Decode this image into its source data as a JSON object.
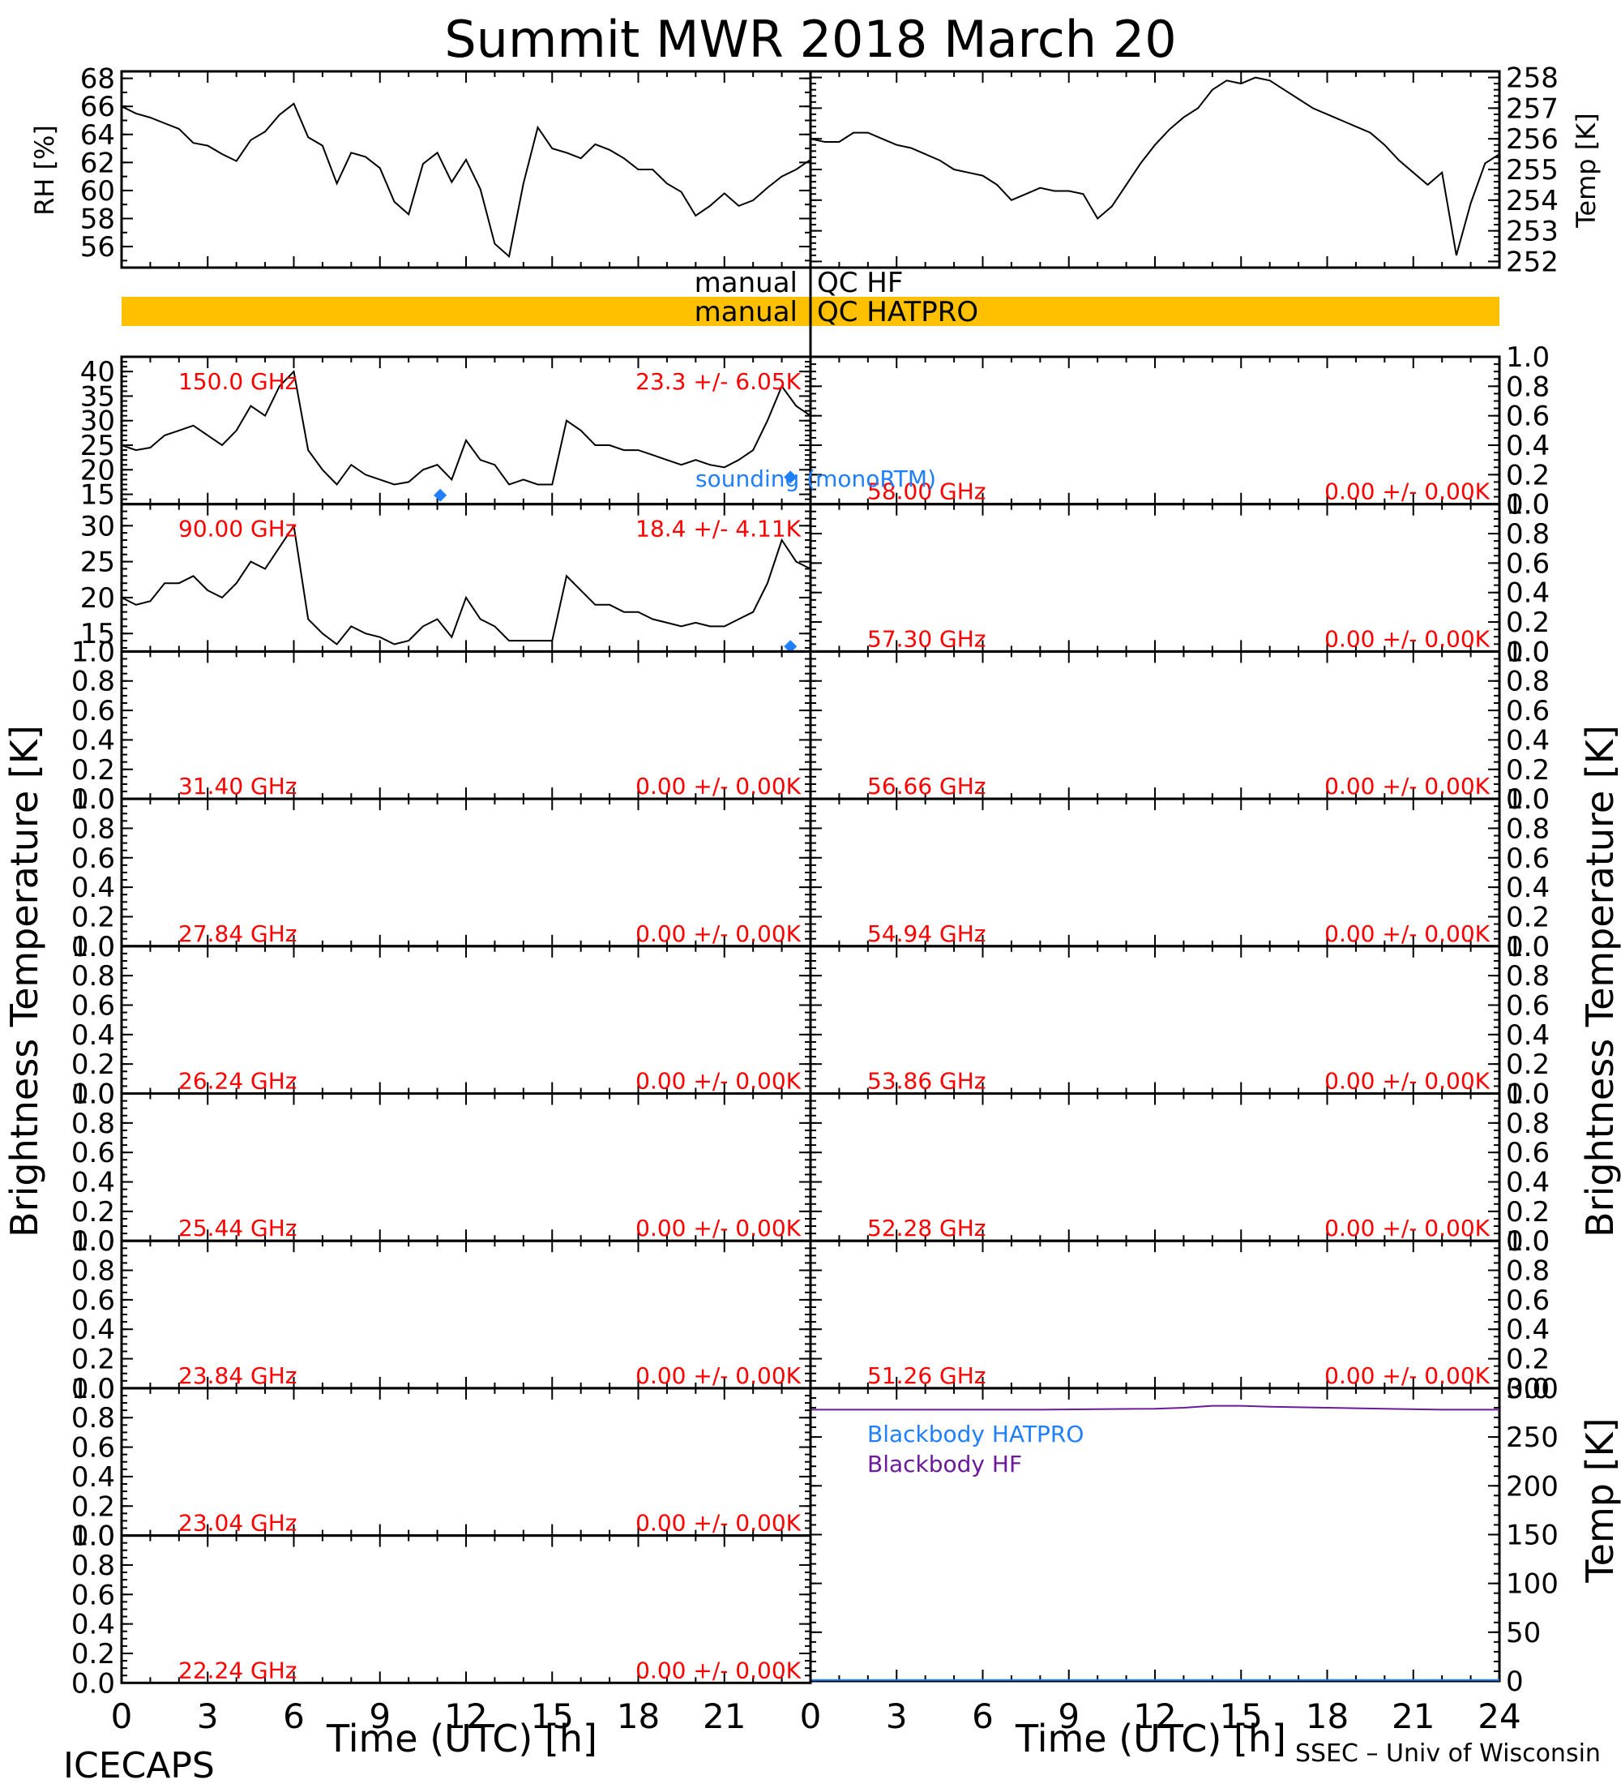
{
  "title": "Summit MWR 2018 March 20",
  "footer": {
    "left": "ICECAPS",
    "right": "SSEC – Univ of Wisconsin"
  },
  "xaxis": {
    "title": "Time (UTC) [h]",
    "ticks_left": [
      "0",
      "3",
      "6",
      "9",
      "12",
      "15",
      "18",
      "21",
      "0"
    ],
    "ticks_right": [
      "3",
      "6",
      "9",
      "12",
      "15",
      "18",
      "21",
      "24"
    ]
  },
  "labels": {
    "rh": "RH [%]",
    "temp_top": "Temp [K]",
    "tb_left": "Brightness Temperature [K]",
    "tb_right": "Brightness Temperature [K]",
    "temp_bottom": "Temp [K]"
  },
  "qc": [
    {
      "label": "manual",
      "name": "QC HF",
      "color": ""
    },
    {
      "label": "manual",
      "name": "QC HATPRO",
      "color": "#ffc000"
    }
  ],
  "legend_sounding": "sounding (monoRTM)",
  "legend_blackbody": [
    {
      "name": "Blackbody HATPRO",
      "color": "#1f7fff"
    },
    {
      "name": "Blackbody HF",
      "color": "#6a1a9a"
    }
  ],
  "colors": {
    "annotation": "#ff0000",
    "sounding": "#1f7fff",
    "qc_bar": "#ffc000",
    "line": "#000000"
  },
  "chart_data": [
    {
      "type": "line",
      "panel": "RH",
      "ylabel": "RH [%]",
      "ylim": [
        54.5,
        68.5
      ],
      "yticks": [
        56,
        58,
        60,
        62,
        64,
        66,
        68
      ],
      "xlim": [
        0,
        24
      ],
      "series": [
        {
          "name": "",
          "x": [
            0,
            0.5,
            1,
            1.5,
            2,
            2.5,
            3,
            3.5,
            4,
            4.5,
            5,
            5.5,
            6,
            6.5,
            7,
            7.5,
            8,
            8.5,
            9,
            9.5,
            10,
            10.5,
            11,
            11.5,
            12,
            12.5,
            13,
            13.5,
            14,
            14.5,
            15,
            15.5,
            16,
            16.5,
            17,
            17.5,
            18,
            18.5,
            19,
            19.5,
            20,
            20.5,
            21,
            21.5,
            22,
            22.5,
            23,
            23.5,
            24
          ],
          "y": [
            66,
            65.5,
            65.2,
            64.8,
            64.4,
            63.4,
            63.2,
            62.6,
            62.1,
            63.6,
            64.2,
            65.4,
            66.2,
            63.8,
            63.2,
            60.5,
            62.7,
            62.4,
            61.6,
            59.2,
            58.3,
            61.9,
            62.7,
            60.6,
            62.2,
            60.1,
            56.2,
            55.3,
            60.5,
            64.5,
            63,
            62.7,
            62.3,
            63.3,
            62.9,
            62.3,
            61.5,
            61.5,
            60.5,
            59.9,
            58.2,
            58.9,
            59.8,
            58.9,
            59.3,
            60.2,
            61,
            61.5,
            62.2
          ]
        }
      ]
    },
    {
      "type": "line",
      "panel": "Temp",
      "ylabel": "Temp [K]",
      "ylim": [
        251.8,
        258.2
      ],
      "yticks": [
        252,
        253,
        254,
        255,
        256,
        257,
        258
      ],
      "xlim": [
        0,
        24
      ],
      "series": [
        {
          "name": "",
          "x": [
            0,
            0.5,
            1,
            1.5,
            2,
            2.5,
            3,
            3.5,
            4,
            4.5,
            5,
            5.5,
            6,
            6.5,
            7,
            7.5,
            8,
            8.5,
            9,
            9.5,
            10,
            10.5,
            11,
            11.5,
            12,
            12.5,
            13,
            13.5,
            14,
            14.5,
            15,
            15.5,
            16,
            16.5,
            17,
            17.5,
            18,
            18.5,
            19,
            19.5,
            20,
            20.5,
            21,
            21.5,
            22,
            22.5,
            23,
            23.5,
            24
          ],
          "y": [
            256,
            255.9,
            255.9,
            256.2,
            256.2,
            256,
            255.8,
            255.7,
            255.5,
            255.3,
            255,
            254.9,
            254.8,
            254.5,
            254,
            254.2,
            254.4,
            254.3,
            254.3,
            254.2,
            253.4,
            253.8,
            254.5,
            255.2,
            255.8,
            256.3,
            256.7,
            257,
            257.6,
            257.9,
            257.8,
            258,
            257.9,
            257.6,
            257.3,
            257,
            256.8,
            256.6,
            256.4,
            256.2,
            255.8,
            255.3,
            254.9,
            254.5,
            254.9,
            252.2,
            253.9,
            255.2,
            255.5
          ]
        }
      ]
    },
    {
      "type": "line",
      "panel": "TB",
      "freq_label": "150.0 GHz",
      "stat_label": "23.3 +/-  6.05K",
      "ylim": [
        13,
        43
      ],
      "yticks": [
        15,
        20,
        25,
        30,
        35,
        40
      ],
      "xlim": [
        0,
        24
      ],
      "series": [
        {
          "name": "",
          "x": [
            0,
            0.5,
            1,
            1.5,
            2,
            2.5,
            3,
            3.5,
            4,
            4.5,
            5,
            5.5,
            6,
            6.5,
            7,
            7.5,
            8,
            8.5,
            9,
            9.5,
            10,
            10.5,
            11,
            11.5,
            12,
            12.5,
            13,
            13.5,
            14,
            14.5,
            15,
            15.5,
            16,
            16.5,
            17,
            17.5,
            18,
            18.5,
            19,
            19.5,
            20,
            20.5,
            21,
            21.5,
            22,
            22.5,
            23,
            23.5,
            24
          ],
          "y": [
            25,
            24,
            24.5,
            27,
            28,
            29,
            27,
            25,
            28,
            33,
            31,
            37,
            40,
            24,
            20,
            17,
            21,
            19,
            18,
            17,
            17.5,
            20,
            21,
            18,
            26,
            22,
            21,
            17,
            18,
            17,
            17,
            30,
            28,
            25,
            25,
            24,
            24,
            23,
            22,
            21,
            22,
            21,
            20.5,
            22,
            24,
            30,
            37,
            33,
            31
          ]
        }
      ],
      "sounding": [
        {
          "x": 11.1,
          "y": 14.8
        },
        {
          "x": 23.3,
          "y": 18.5
        }
      ]
    },
    {
      "type": "line",
      "panel": "TB",
      "freq_label": "90.00 GHz",
      "stat_label": "18.4 +/-  4.11K",
      "ylim": [
        12.5,
        33
      ],
      "yticks": [
        15,
        20,
        25,
        30
      ],
      "xlim": [
        0,
        24
      ],
      "series": [
        {
          "name": "",
          "x": [
            0,
            0.5,
            1,
            1.5,
            2,
            2.5,
            3,
            3.5,
            4,
            4.5,
            5,
            5.5,
            6,
            6.5,
            7,
            7.5,
            8,
            8.5,
            9,
            9.5,
            10,
            10.5,
            11,
            11.5,
            12,
            12.5,
            13,
            13.5,
            14,
            14.5,
            15,
            15.5,
            16,
            16.5,
            17,
            17.5,
            18,
            18.5,
            19,
            19.5,
            20,
            20.5,
            21,
            21.5,
            22,
            22.5,
            23,
            23.5,
            24
          ],
          "y": [
            20,
            19,
            19.5,
            22,
            22,
            23,
            21,
            20,
            22,
            25,
            24,
            27,
            30,
            17,
            15,
            13.5,
            16,
            15,
            14.5,
            13.5,
            14,
            16,
            17,
            14.5,
            20,
            17,
            16,
            14,
            14,
            14,
            14,
            23,
            21,
            19,
            19,
            18,
            18,
            17,
            16.5,
            16,
            16.5,
            16,
            16,
            17,
            18,
            22,
            28,
            25,
            24
          ]
        }
      ],
      "sounding": [
        {
          "x": 23.3,
          "y": 13.2
        }
      ]
    },
    {
      "type": "line",
      "panel": "TB",
      "freq_label": "31.40 GHz",
      "stat_label": "0.00 +/-  0.00K",
      "ylim": [
        0,
        1
      ],
      "xlim": [
        0,
        24
      ],
      "series": []
    },
    {
      "type": "line",
      "panel": "TB",
      "freq_label": "27.84 GHz",
      "stat_label": "0.00 +/-  0.00K",
      "ylim": [
        0,
        1
      ],
      "xlim": [
        0,
        24
      ],
      "series": []
    },
    {
      "type": "line",
      "panel": "TB",
      "freq_label": "26.24 GHz",
      "stat_label": "0.00 +/-  0.00K",
      "ylim": [
        0,
        1
      ],
      "xlim": [
        0,
        24
      ],
      "series": []
    },
    {
      "type": "line",
      "panel": "TB",
      "freq_label": "25.44 GHz",
      "stat_label": "0.00 +/-  0.00K",
      "ylim": [
        0,
        1
      ],
      "xlim": [
        0,
        24
      ],
      "series": []
    },
    {
      "type": "line",
      "panel": "TB",
      "freq_label": "23.84 GHz",
      "stat_label": "0.00 +/-  0.00K",
      "ylim": [
        0,
        1
      ],
      "xlim": [
        0,
        24
      ],
      "series": []
    },
    {
      "type": "line",
      "panel": "TB",
      "freq_label": "23.04 GHz",
      "stat_label": "0.00 +/-  0.00K",
      "ylim": [
        0,
        1
      ],
      "xlim": [
        0,
        24
      ],
      "series": []
    },
    {
      "type": "line",
      "panel": "TB",
      "freq_label": "22.24 GHz",
      "stat_label": "0.00 +/-  0.00K",
      "ylim": [
        0,
        1
      ],
      "xlim": [
        0,
        24
      ],
      "series": []
    },
    {
      "type": "line",
      "panel": "TB",
      "freq_label": "58.00 GHz",
      "stat_label": "0.00 +/-  0.00K",
      "ylim": [
        0,
        1
      ],
      "xlim": [
        0,
        24
      ],
      "series": []
    },
    {
      "type": "line",
      "panel": "TB",
      "freq_label": "57.30 GHz",
      "stat_label": "0.00 +/-  0.00K",
      "ylim": [
        0,
        1
      ],
      "xlim": [
        0,
        24
      ],
      "series": []
    },
    {
      "type": "line",
      "panel": "TB",
      "freq_label": "56.66 GHz",
      "stat_label": "0.00 +/-  0.00K",
      "ylim": [
        0,
        1
      ],
      "xlim": [
        0,
        24
      ],
      "series": []
    },
    {
      "type": "line",
      "panel": "TB",
      "freq_label": "54.94 GHz",
      "stat_label": "0.00 +/-  0.00K",
      "ylim": [
        0,
        1
      ],
      "xlim": [
        0,
        24
      ],
      "series": []
    },
    {
      "type": "line",
      "panel": "TB",
      "freq_label": "53.86 GHz",
      "stat_label": "0.00 +/-  0.00K",
      "ylim": [
        0,
        1
      ],
      "xlim": [
        0,
        24
      ],
      "series": []
    },
    {
      "type": "line",
      "panel": "TB",
      "freq_label": "52.28 GHz",
      "stat_label": "0.00 +/-  0.00K",
      "ylim": [
        0,
        1
      ],
      "xlim": [
        0,
        24
      ],
      "series": []
    },
    {
      "type": "line",
      "panel": "TB",
      "freq_label": "51.26 GHz",
      "stat_label": "0.00 +/-  0.00K",
      "ylim": [
        0,
        1
      ],
      "xlim": [
        0,
        24
      ],
      "series": []
    },
    {
      "type": "line",
      "panel": "Blackbody",
      "ylabel": "Temp [K]",
      "ylim": [
        0,
        300
      ],
      "yticks": [
        0,
        50,
        100,
        150,
        200,
        250,
        300
      ],
      "xlim": [
        0,
        24
      ],
      "series": [
        {
          "name": "Blackbody HATPRO",
          "x": [
            0,
            24
          ],
          "y": [
            1,
            1
          ]
        },
        {
          "name": "Blackbody HF",
          "x": [
            0,
            4,
            8,
            12,
            13,
            14,
            15,
            16,
            18,
            20,
            22,
            24
          ],
          "y": [
            278,
            278,
            278,
            279,
            280,
            282,
            282,
            281,
            280,
            279,
            278,
            278
          ]
        }
      ]
    }
  ]
}
